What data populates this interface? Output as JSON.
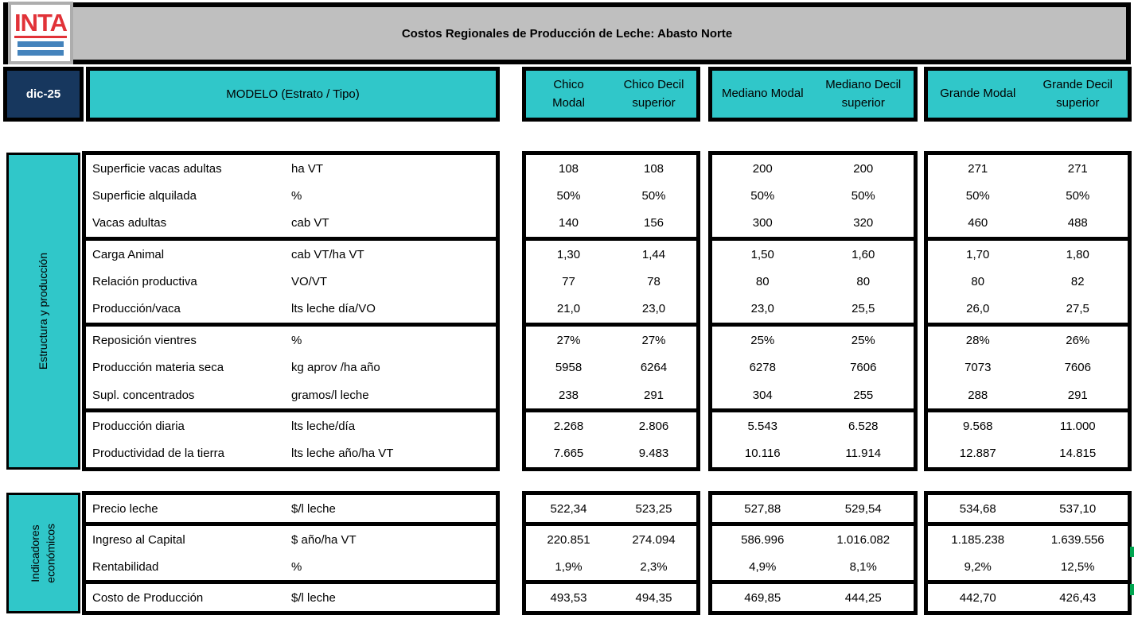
{
  "page": {
    "title": "Costos Regionales de Producción de Leche: Abasto Norte",
    "date": "dic-25",
    "logo": "INTA"
  },
  "table": {
    "modelo_header": "MODELO (Estrato / Tipo)",
    "column_groups": [
      {
        "name": "Chico",
        "columns": [
          "Chico Modal",
          "Chico Decil superior"
        ]
      },
      {
        "name": "Mediano",
        "columns": [
          "Mediano Modal",
          "Mediano Decil superior"
        ]
      },
      {
        "name": "Grande",
        "columns": [
          "Grande Modal",
          "Grande Decil superior"
        ]
      }
    ],
    "sections": [
      {
        "label": "Estructura y producción",
        "group_breaks": [
          3,
          6,
          9
        ],
        "rows": [
          {
            "name": "Superficie vacas adultas",
            "unit": "ha VT",
            "values": [
              "108",
              "108",
              "200",
              "200",
              "271",
              "271"
            ]
          },
          {
            "name": "Superficie alquilada",
            "unit": "%",
            "values": [
              "50%",
              "50%",
              "50%",
              "50%",
              "50%",
              "50%"
            ]
          },
          {
            "name": "Vacas adultas",
            "unit": "cab VT",
            "values": [
              "140",
              "156",
              "300",
              "320",
              "460",
              "488"
            ]
          },
          {
            "name": "Carga Animal",
            "unit": "cab VT/ha VT",
            "values": [
              "1,30",
              "1,44",
              "1,50",
              "1,60",
              "1,70",
              "1,80"
            ]
          },
          {
            "name": "Relación productiva",
            "unit": "VO/VT",
            "values": [
              "77",
              "78",
              "80",
              "80",
              "80",
              "82"
            ]
          },
          {
            "name": "Producción/vaca",
            "unit": "lts leche día/VO",
            "values": [
              "21,0",
              "23,0",
              "23,0",
              "25,5",
              "26,0",
              "27,5"
            ]
          },
          {
            "name": "Reposición vientres",
            "unit": "%",
            "values": [
              "27%",
              "27%",
              "25%",
              "25%",
              "28%",
              "26%"
            ]
          },
          {
            "name": "Producción materia seca",
            "unit": "kg aprov /ha año",
            "values": [
              "5958",
              "6264",
              "6278",
              "7606",
              "7073",
              "7606"
            ]
          },
          {
            "name": "Supl. concentrados",
            "unit": "gramos/l leche",
            "values": [
              "238",
              "291",
              "304",
              "255",
              "288",
              "291"
            ]
          },
          {
            "name": "Producción diaria",
            "unit": "lts leche/día",
            "values": [
              "2.268",
              "2.806",
              "5.543",
              "6.528",
              "9.568",
              "11.000"
            ]
          },
          {
            "name": "Productividad de la tierra",
            "unit": "lts leche año/ha VT",
            "values": [
              "7.665",
              "9.483",
              "10.116",
              "11.914",
              "12.887",
              "14.815"
            ]
          }
        ]
      },
      {
        "label": "Indicadores\neconómicos",
        "group_breaks": [
          1,
          3
        ],
        "rows": [
          {
            "name": "Precio leche",
            "unit": "$/l leche",
            "values": [
              "522,34",
              "523,25",
              "527,88",
              "529,54",
              "534,68",
              "537,10"
            ]
          },
          {
            "name": "Ingreso al Capital",
            "unit": "$ año/ha VT",
            "values": [
              "220.851",
              "274.094",
              "586.996",
              "1.016.082",
              "1.185.238",
              "1.639.556"
            ]
          },
          {
            "name": "Rentabilidad",
            "unit": "%",
            "values": [
              "1,9%",
              "2,3%",
              "4,9%",
              "8,1%",
              "9,2%",
              "12,5%"
            ]
          },
          {
            "name": "Costo de Producción",
            "unit": "$/l leche",
            "values": [
              "493,53",
              "494,35",
              "469,85",
              "444,25",
              "442,70",
              "426,43"
            ]
          }
        ]
      }
    ]
  },
  "colors": {
    "teal": "#30C7C9",
    "navy": "#17375E",
    "banner_gray": "#BFBFBF",
    "logo_red": "#E13238",
    "logo_blue": "#4483BC",
    "tick_green": "#00A550"
  }
}
